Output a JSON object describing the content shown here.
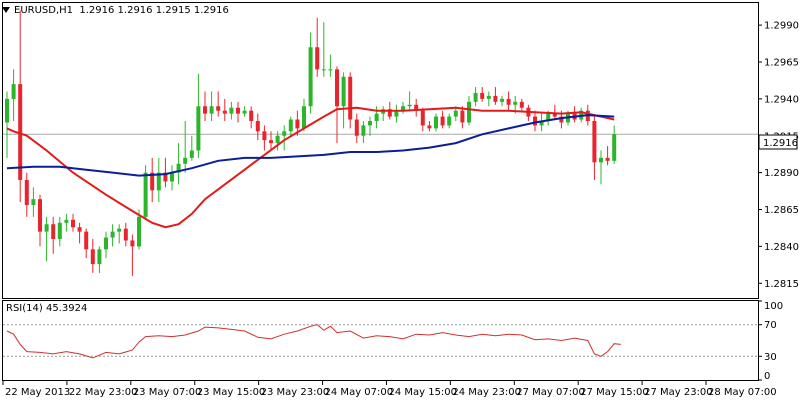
{
  "header": {
    "symbol_tf": "EURUSD,H1",
    "ohlc": "1.2916 1.2916 1.2915 1.2916"
  },
  "rsi_header": {
    "label": "RSI(14) 45.3924"
  },
  "price_badge": "1.2916",
  "colors": {
    "background": "#ffffff",
    "bull": "#2bb52b",
    "bear": "#e8242c",
    "ma_fast": "#e31a1a",
    "ma_slow": "#0a1e9a",
    "rsi": "#d03030",
    "price_line": "#aaaaaa"
  },
  "chart_data": [
    {
      "type": "candlestick",
      "title": "EURUSD,H1",
      "ylim": [
        1.2805,
        1.3005
      ],
      "y_ticks": [
        "1.2990",
        "1.2965",
        "1.2940",
        "1.2915",
        "1.2890",
        "1.2865",
        "1.2840",
        "1.2815"
      ],
      "x_ticks": [
        "22 May 2013",
        "22 May 23:00",
        "23 May 07:00",
        "23 May 15:00",
        "23 May 23:00",
        "24 May 07:00",
        "24 May 15:00",
        "24 May 23:00",
        "27 May 07:00",
        "27 May 15:00",
        "27 May 23:00",
        "28 May 07:00"
      ],
      "current_price": 1.2916,
      "candles": [
        [
          1.2924,
          1.2945,
          1.29,
          1.294
        ],
        [
          1.294,
          1.296,
          1.2925,
          1.295
        ],
        [
          1.295,
          1.3,
          1.287,
          1.2885
        ],
        [
          1.2885,
          1.289,
          1.286,
          1.2868
        ],
        [
          1.2868,
          1.288,
          1.286,
          1.2872
        ],
        [
          1.2872,
          1.2875,
          1.284,
          1.285
        ],
        [
          1.285,
          1.286,
          1.283,
          1.2855
        ],
        [
          1.2855,
          1.286,
          1.2835,
          1.2845
        ],
        [
          1.2845,
          1.286,
          1.284,
          1.2856
        ],
        [
          1.2856,
          1.2862,
          1.285,
          1.2858
        ],
        [
          1.2858,
          1.2862,
          1.285,
          1.2853
        ],
        [
          1.2853,
          1.2856,
          1.2842,
          1.285
        ],
        [
          1.285,
          1.2852,
          1.2832,
          1.2838
        ],
        [
          1.2838,
          1.2845,
          1.2822,
          1.2828
        ],
        [
          1.2828,
          1.284,
          1.2822,
          1.2838
        ],
        [
          1.2838,
          1.285,
          1.2832,
          1.2846
        ],
        [
          1.2846,
          1.2855,
          1.284,
          1.285
        ],
        [
          1.285,
          1.2855,
          1.2842,
          1.2852
        ],
        [
          1.2852,
          1.2856,
          1.284,
          1.2844
        ],
        [
          1.2844,
          1.2848,
          1.282,
          1.284
        ],
        [
          1.284,
          1.2865,
          1.2838,
          1.286
        ],
        [
          1.286,
          1.2895,
          1.2858,
          1.289
        ],
        [
          1.289,
          1.29,
          1.287,
          1.2878
        ],
        [
          1.2878,
          1.29,
          1.287,
          1.289
        ],
        [
          1.289,
          1.29,
          1.288,
          1.2884
        ],
        [
          1.2884,
          1.2895,
          1.2878,
          1.289
        ],
        [
          1.289,
          1.291,
          1.2882,
          1.2896
        ],
        [
          1.2896,
          1.2925,
          1.289,
          1.29
        ],
        [
          1.29,
          1.2915,
          1.2898,
          1.2905
        ],
        [
          1.2905,
          1.2957,
          1.29,
          1.2935
        ],
        [
          1.2935,
          1.2945,
          1.2925,
          1.293
        ],
        [
          1.293,
          1.2945,
          1.2925,
          1.2935
        ],
        [
          1.2935,
          1.2945,
          1.2928,
          1.2932
        ],
        [
          1.2932,
          1.294,
          1.2925,
          1.293
        ],
        [
          1.293,
          1.2938,
          1.2926,
          1.2934
        ],
        [
          1.2934,
          1.2938,
          1.2924,
          1.293
        ],
        [
          1.293,
          1.2935,
          1.2928,
          1.2932
        ],
        [
          1.2932,
          1.2935,
          1.292,
          1.2925
        ],
        [
          1.2925,
          1.293,
          1.2912,
          1.2918
        ],
        [
          1.2918,
          1.2922,
          1.2905,
          1.2912
        ],
        [
          1.2912,
          1.2918,
          1.2905,
          1.291
        ],
        [
          1.291,
          1.2918,
          1.2905,
          1.2915
        ],
        [
          1.2915,
          1.2922,
          1.2905,
          1.2918
        ],
        [
          1.2918,
          1.2928,
          1.2915,
          1.2926
        ],
        [
          1.2926,
          1.2932,
          1.2915,
          1.292
        ],
        [
          1.292,
          1.294,
          1.2918,
          1.2935
        ],
        [
          1.2935,
          1.2985,
          1.293,
          1.2975
        ],
        [
          1.2975,
          1.2995,
          1.2955,
          1.296
        ],
        [
          1.296,
          1.2992,
          1.2955,
          1.296
        ],
        [
          1.296,
          1.297,
          1.2955,
          1.296
        ],
        [
          1.296,
          1.2962,
          1.291,
          1.2935
        ],
        [
          1.2935,
          1.2958,
          1.292,
          1.2955
        ],
        [
          1.2955,
          1.2958,
          1.292,
          1.2926
        ],
        [
          1.2926,
          1.293,
          1.291,
          1.2915
        ],
        [
          1.2915,
          1.2925,
          1.291,
          1.2922
        ],
        [
          1.2922,
          1.2928,
          1.2915,
          1.2925
        ],
        [
          1.2925,
          1.2935,
          1.292,
          1.293
        ],
        [
          1.293,
          1.2935,
          1.2925,
          1.2933
        ],
        [
          1.2933,
          1.2938,
          1.2926,
          1.2928
        ],
        [
          1.2928,
          1.2936,
          1.2924,
          1.2932
        ],
        [
          1.2932,
          1.2938,
          1.293,
          1.2935
        ],
        [
          1.2935,
          1.2945,
          1.2932,
          1.2936
        ],
        [
          1.2936,
          1.294,
          1.2928,
          1.2932
        ],
        [
          1.2932,
          1.2934,
          1.2918,
          1.2922
        ],
        [
          1.2922,
          1.2925,
          1.2918,
          1.292
        ],
        [
          1.292,
          1.293,
          1.2918,
          1.2928
        ],
        [
          1.2928,
          1.2932,
          1.292,
          1.2922
        ],
        [
          1.2922,
          1.293,
          1.292,
          1.2928
        ],
        [
          1.2928,
          1.2935,
          1.2925,
          1.2932
        ],
        [
          1.2932,
          1.2935,
          1.292,
          1.2924
        ],
        [
          1.2924,
          1.2942,
          1.2922,
          1.2938
        ],
        [
          1.2938,
          1.2948,
          1.2935,
          1.2944
        ],
        [
          1.2944,
          1.2948,
          1.2938,
          1.294
        ],
        [
          1.294,
          1.2945,
          1.2935,
          1.2942
        ],
        [
          1.2942,
          1.2948,
          1.2936,
          1.2938
        ],
        [
          1.2938,
          1.2942,
          1.2935,
          1.294
        ],
        [
          1.294,
          1.2945,
          1.2932,
          1.2936
        ],
        [
          1.2936,
          1.2942,
          1.293,
          1.2938
        ],
        [
          1.2938,
          1.294,
          1.2932,
          1.2934
        ],
        [
          1.2934,
          1.2936,
          1.2925,
          1.2928
        ],
        [
          1.2928,
          1.2932,
          1.2918,
          1.2922
        ],
        [
          1.2922,
          1.293,
          1.2918,
          1.2925
        ],
        [
          1.2925,
          1.2932,
          1.2922,
          1.293
        ],
        [
          1.293,
          1.2936,
          1.2926,
          1.2928
        ],
        [
          1.2928,
          1.2932,
          1.292,
          1.2924
        ],
        [
          1.2924,
          1.2932,
          1.2922,
          1.293
        ],
        [
          1.293,
          1.2935,
          1.2924,
          1.2926
        ],
        [
          1.2926,
          1.2934,
          1.2924,
          1.2932
        ],
        [
          1.2932,
          1.2936,
          1.2922,
          1.2925
        ],
        [
          1.2925,
          1.2928,
          1.2885,
          1.2897
        ],
        [
          1.2897,
          1.2905,
          1.2882,
          1.29
        ],
        [
          1.29,
          1.2908,
          1.2895,
          1.2898
        ],
        [
          1.2898,
          1.2922,
          1.2896,
          1.2916
        ]
      ],
      "series": [
        {
          "kind": "ma_fast",
          "points": [
            [
              0,
              1.292
            ],
            [
              1,
              1.2918
            ],
            [
              3,
              1.2915
            ],
            [
              6,
              1.2905
            ],
            [
              10,
              1.289
            ],
            [
              15,
              1.2875
            ],
            [
              19,
              1.2864
            ],
            [
              22,
              1.2856
            ],
            [
              24,
              1.2853
            ],
            [
              26,
              1.2855
            ],
            [
              28,
              1.2862
            ],
            [
              30,
              1.2872
            ],
            [
              33,
              1.2882
            ],
            [
              36,
              1.2892
            ],
            [
              39,
              1.2902
            ],
            [
              42,
              1.2912
            ],
            [
              45,
              1.292
            ],
            [
              48,
              1.2928
            ],
            [
              50,
              1.2933
            ],
            [
              53,
              1.2934
            ],
            [
              56,
              1.2932
            ],
            [
              60,
              1.2932
            ],
            [
              64,
              1.2933
            ],
            [
              68,
              1.2934
            ],
            [
              72,
              1.2932
            ],
            [
              76,
              1.2932
            ],
            [
              80,
              1.2931
            ],
            [
              84,
              1.293
            ],
            [
              87,
              1.2931
            ],
            [
              89,
              1.2929
            ],
            [
              92,
              1.2926
            ]
          ]
        },
        {
          "kind": "ma_slow",
          "points": [
            [
              0,
              1.2893
            ],
            [
              4,
              1.2894
            ],
            [
              8,
              1.2894
            ],
            [
              12,
              1.2892
            ],
            [
              16,
              1.289
            ],
            [
              20,
              1.2888
            ],
            [
              24,
              1.2889
            ],
            [
              28,
              1.2893
            ],
            [
              32,
              1.2898
            ],
            [
              36,
              1.29
            ],
            [
              40,
              1.29
            ],
            [
              44,
              1.2901
            ],
            [
              48,
              1.2902
            ],
            [
              52,
              1.2904
            ],
            [
              56,
              1.2904
            ],
            [
              60,
              1.2905
            ],
            [
              64,
              1.2907
            ],
            [
              68,
              1.291
            ],
            [
              72,
              1.2916
            ],
            [
              76,
              1.292
            ],
            [
              80,
              1.2924
            ],
            [
              84,
              1.2927
            ],
            [
              88,
              1.2929
            ],
            [
              92,
              1.2928
            ]
          ]
        }
      ]
    },
    {
      "type": "line",
      "title": "RSI(14) 45.3924",
      "ylim": [
        0,
        100
      ],
      "y_ticks": [
        "100",
        "70",
        "30",
        "0"
      ],
      "levels": [
        70,
        30
      ],
      "series": [
        {
          "name": "RSI(14)",
          "points": [
            [
              0,
              62
            ],
            [
              1,
              58
            ],
            [
              2,
              45
            ],
            [
              3,
              36
            ],
            [
              5,
              35
            ],
            [
              7,
              33
            ],
            [
              9,
              36
            ],
            [
              11,
              33
            ],
            [
              13,
              28
            ],
            [
              15,
              35
            ],
            [
              17,
              33
            ],
            [
              19,
              38
            ],
            [
              20,
              48
            ],
            [
              21,
              55
            ],
            [
              23,
              56
            ],
            [
              25,
              55
            ],
            [
              27,
              57
            ],
            [
              29,
              62
            ],
            [
              30,
              67
            ],
            [
              32,
              66
            ],
            [
              34,
              64
            ],
            [
              36,
              62
            ],
            [
              38,
              54
            ],
            [
              40,
              52
            ],
            [
              42,
              58
            ],
            [
              44,
              62
            ],
            [
              46,
              68
            ],
            [
              47,
              70
            ],
            [
              48,
              63
            ],
            [
              49,
              68
            ],
            [
              50,
              60
            ],
            [
              52,
              62
            ],
            [
              54,
              53
            ],
            [
              56,
              56
            ],
            [
              58,
              55
            ],
            [
              60,
              52
            ],
            [
              62,
              58
            ],
            [
              64,
              57
            ],
            [
              66,
              60
            ],
            [
              68,
              57
            ],
            [
              70,
              55
            ],
            [
              72,
              58
            ],
            [
              74,
              56
            ],
            [
              76,
              58
            ],
            [
              78,
              57
            ],
            [
              80,
              51
            ],
            [
              82,
              52
            ],
            [
              84,
              50
            ],
            [
              86,
              53
            ],
            [
              88,
              50
            ],
            [
              89,
              33
            ],
            [
              90,
              30
            ],
            [
              91,
              36
            ],
            [
              92,
              46
            ],
            [
              93,
              45
            ]
          ]
        }
      ]
    }
  ]
}
